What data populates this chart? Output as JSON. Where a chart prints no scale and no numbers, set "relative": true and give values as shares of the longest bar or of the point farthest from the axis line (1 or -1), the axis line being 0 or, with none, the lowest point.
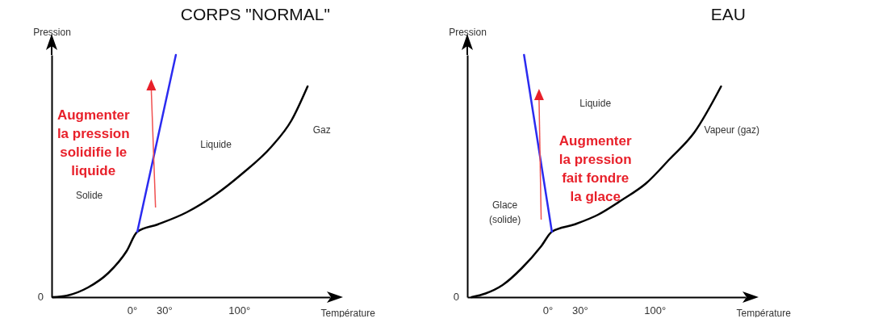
{
  "chart_data": [
    {
      "type": "line",
      "title": "CORPS \"NORMAL\"",
      "xlabel": "Température",
      "ylabel": "Pression",
      "relative": true,
      "xlim": [
        -75,
        185
      ],
      "xticks": [
        {
          "value": 0,
          "label": "0°"
        },
        {
          "value": 30,
          "label": "30°"
        },
        {
          "value": 100,
          "label": "100°"
        }
      ],
      "series": [
        {
          "color": "#000000",
          "x": [
            -74,
            -61,
            -41,
            -22,
            -5,
            5,
            24,
            51,
            77,
            103,
            130,
            149,
            164
          ],
          "values": [
            0,
            0.006,
            0.04,
            0.1,
            0.19,
            0.27,
            0.3,
            0.35,
            0.42,
            0.51,
            0.62,
            0.73,
            0.87
          ]
        },
        {
          "color": "#2b2bf0",
          "x": [
            5,
            41
          ],
          "values": [
            0.27,
            1
          ]
        }
      ],
      "annotations": [
        {
          "text": "0",
          "x": -75,
          "y": 0
        },
        "Solide",
        "Liquide",
        "Gaz",
        "Augmenter\nla pression\nsolidifie le\nliquide"
      ]
    },
    {
      "type": "line",
      "title": "EAU",
      "xlabel": "Température",
      "ylabel": "Pression",
      "relative": true,
      "xlim": [
        -75,
        185
      ],
      "xticks": [
        {
          "value": 0,
          "label": "0°"
        },
        {
          "value": 30,
          "label": "30°"
        },
        {
          "value": 100,
          "label": "100°"
        }
      ],
      "series": [
        {
          "color": "#000000",
          "x": [
            -71,
            -58,
            -42,
            -24,
            -6,
            4,
            25,
            47,
            69,
            92,
            114,
            137,
            162
          ],
          "values": [
            0,
            0.015,
            0.05,
            0.12,
            0.21,
            0.27,
            0.3,
            0.34,
            0.4,
            0.47,
            0.57,
            0.68,
            0.87
          ]
        },
        {
          "color": "#2b2bf0",
          "x": [
            4,
            -22
          ],
          "values": [
            0.27,
            1
          ]
        }
      ],
      "annotations": [
        {
          "text": "0",
          "x": -75,
          "y": 0
        },
        "Glace\n(solide)",
        "Liquide",
        "Vapeur (gaz)",
        "Augmenter\nla pression\nfait fondre\nla glace"
      ]
    }
  ]
}
